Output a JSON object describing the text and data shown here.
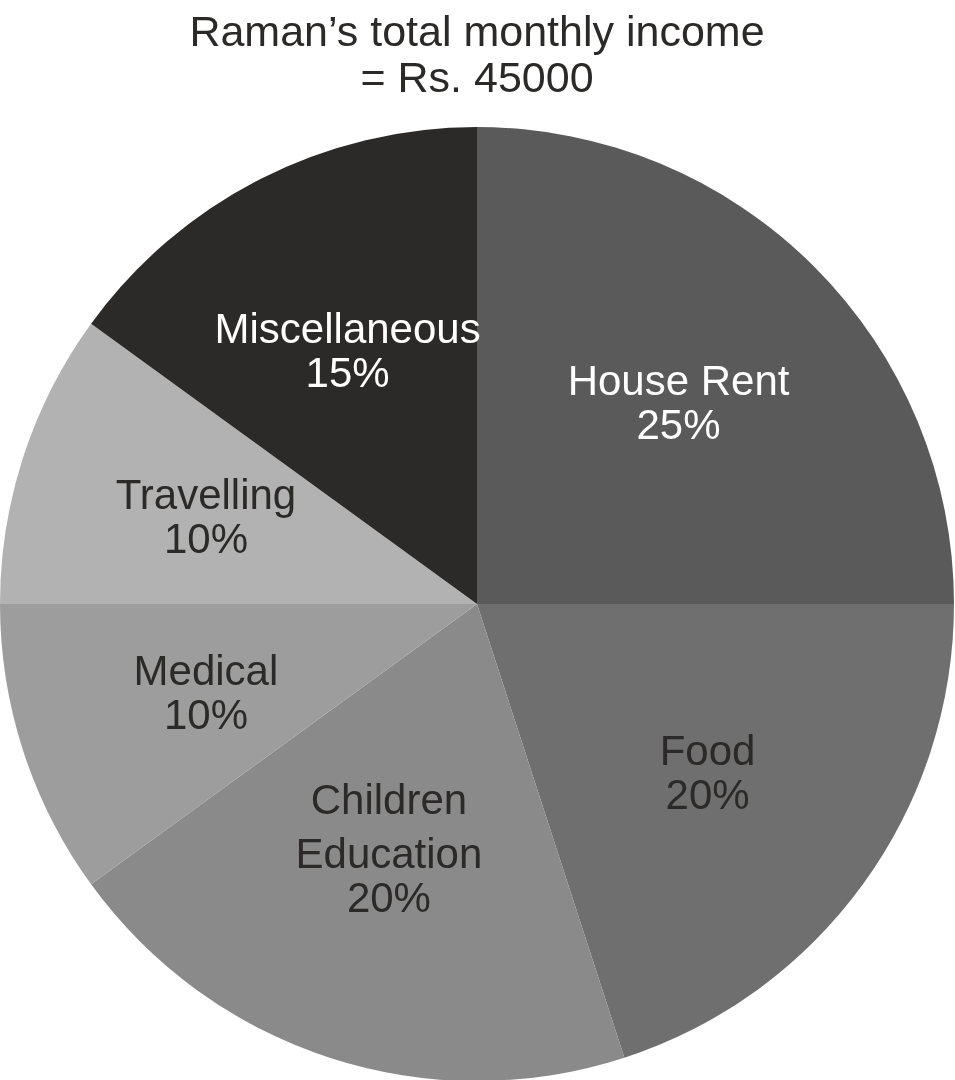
{
  "chart_data": {
    "type": "pie",
    "title": "Raman’s total monthly income\n= Rs. 45000",
    "categories": [
      "House Rent",
      "Food",
      "Children Education",
      "Medical",
      "Travelling",
      "Miscellaneous"
    ],
    "values": [
      25,
      20,
      20,
      10,
      10,
      15
    ],
    "value_labels": [
      "25%",
      "20%",
      "20%",
      "10%",
      "10%",
      "15%"
    ],
    "colors": [
      "#5a5a5a",
      "#6f6f6f",
      "#8a8a8a",
      "#9c9d9c",
      "#b1b2b1",
      "#2b2a29"
    ]
  }
}
